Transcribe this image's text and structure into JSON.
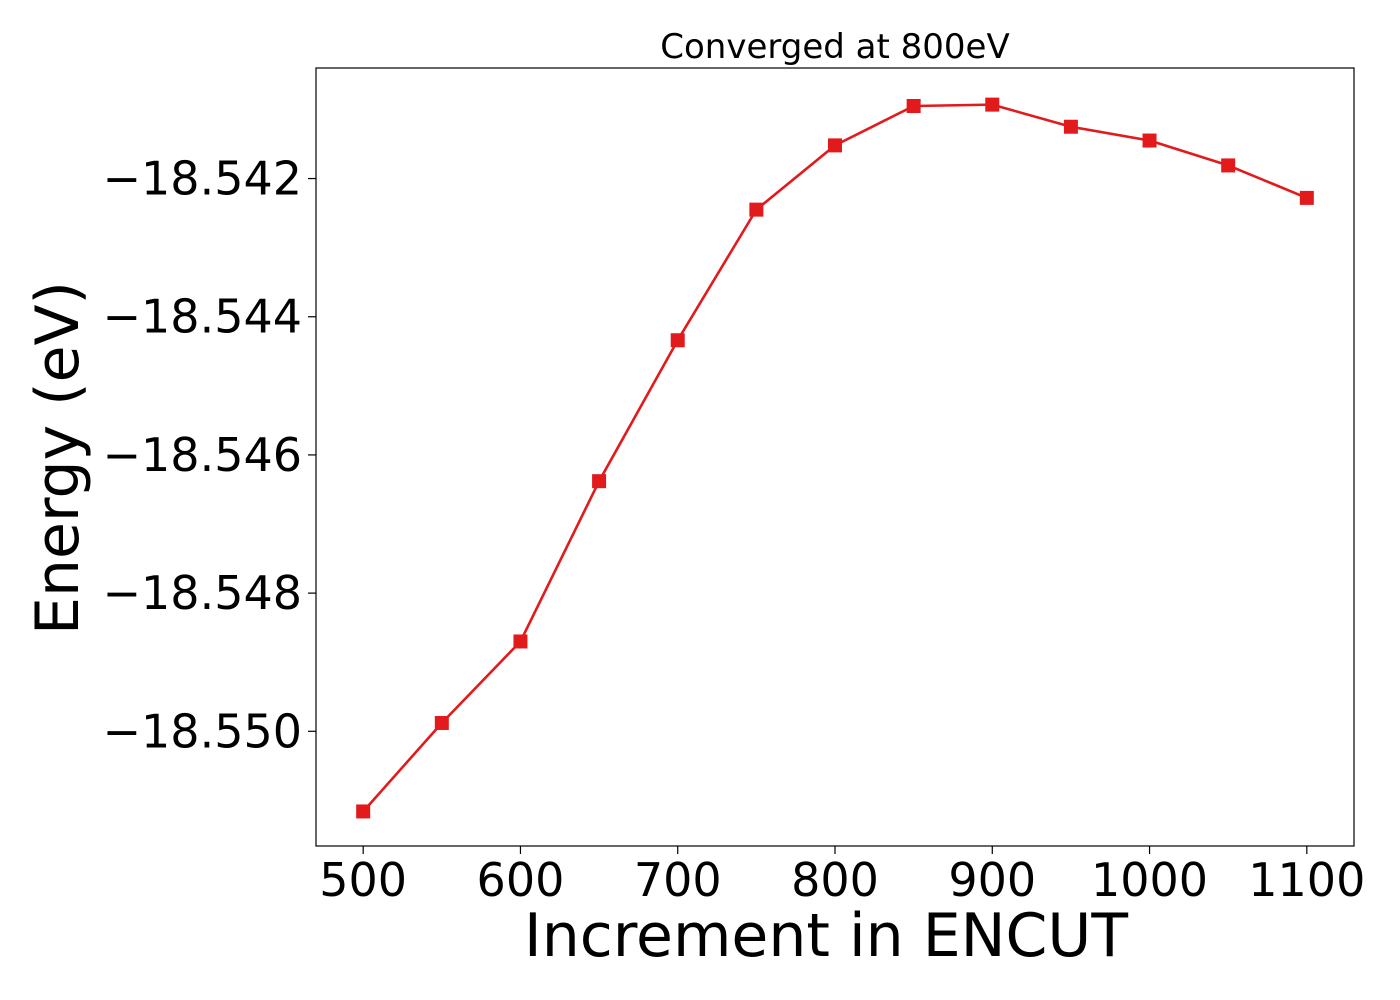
{
  "chart_data": {
    "type": "line",
    "title": "Converged at 800eV",
    "xlabel": "Increment in ENCUT",
    "ylabel": "Energy (eV)",
    "x": [
      500,
      550,
      600,
      650,
      700,
      750,
      800,
      850,
      900,
      950,
      1000,
      1050,
      1100
    ],
    "series": [
      {
        "values": [
          -18.55116,
          -18.54988,
          -18.5487,
          -18.54638,
          -18.54434,
          -18.54245,
          -18.54152,
          -18.54095,
          -18.54093,
          -18.54125,
          -18.54145,
          -18.54181,
          -18.54228
        ]
      }
    ],
    "xticks": [
      500,
      600,
      700,
      800,
      900,
      1000,
      1100
    ],
    "xtick_labels": [
      "500",
      "600",
      "700",
      "800",
      "900",
      "1000",
      "1100"
    ],
    "yticks": [
      -18.55,
      -18.548,
      -18.546,
      -18.544,
      -18.542
    ],
    "ytick_labels": [
      "−18.550",
      "−18.548",
      "−18.546",
      "−18.544",
      "−18.542"
    ],
    "xlim": [
      470,
      1130
    ],
    "ylim": [
      -18.55166,
      -18.5404
    ],
    "grid": false,
    "colors": {
      "line": "#e31a1c",
      "marker": "#e31a1c",
      "axes": "#000000"
    },
    "marker": "square"
  }
}
